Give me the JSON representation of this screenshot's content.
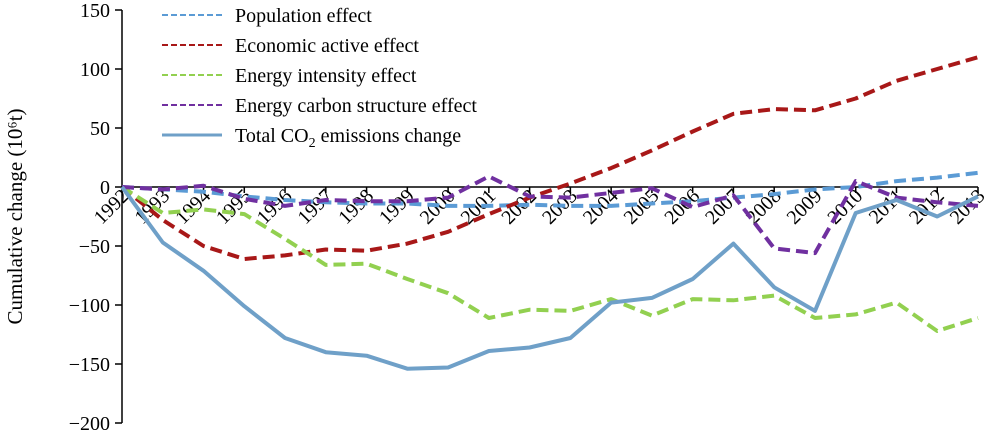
{
  "chart_data": {
    "type": "line",
    "title": "",
    "xlabel": "",
    "ylabel": "Cumulative change (10⁶t)",
    "ylim": [
      -200,
      150
    ],
    "yticks": [
      -200,
      -150,
      -100,
      -50,
      0,
      50,
      100,
      150
    ],
    "grid": false,
    "legend_position": "top-left",
    "categories": [
      "1992",
      "1993",
      "1994",
      "1995",
      "1996",
      "1997",
      "1998",
      "1999",
      "2000",
      "2001",
      "2002",
      "2003",
      "2004",
      "2005",
      "2006",
      "2007",
      "2008",
      "2009",
      "2010",
      "2011",
      "2012",
      "2013"
    ],
    "series": [
      {
        "name": "Population effect",
        "legend_label": "Population effect",
        "style": "dashed",
        "color": "#5b9bd5",
        "values": [
          0,
          -2,
          -4,
          -8,
          -11,
          -13,
          -14,
          -14,
          -16,
          -16,
          -15,
          -16,
          -16,
          -14,
          -12,
          -9,
          -6,
          -2,
          0,
          5,
          8,
          12
        ]
      },
      {
        "name": "Economic active effect",
        "legend_label": "Economic active effect",
        "style": "dashed",
        "color": "#a81818",
        "values": [
          0,
          -28,
          -50,
          -61,
          -58,
          -53,
          -54,
          -48,
          -38,
          -23,
          -9,
          3,
          16,
          31,
          47,
          62,
          66,
          65,
          75,
          90,
          100,
          110
        ]
      },
      {
        "name": "Energy intensity effect",
        "legend_label": "Energy intensity effect",
        "style": "dashed",
        "color": "#92d050",
        "values": [
          0,
          -22,
          -19,
          -23,
          -44,
          -66,
          -65,
          -78,
          -90,
          -111,
          -104,
          -105,
          -95,
          -109,
          -95,
          -96,
          -92,
          -111,
          -108,
          -98,
          -122,
          -111
        ]
      },
      {
        "name": "Energy carbon structure effect",
        "legend_label": "Energy carbon structure effect",
        "style": "dashed",
        "color": "#7030a0",
        "values": [
          0,
          -2,
          1,
          -10,
          -16,
          -11,
          -12,
          -12,
          -9,
          9,
          -8,
          -9,
          -5,
          -1,
          -17,
          -7,
          -52,
          -56,
          5,
          -9,
          -13,
          -16
        ]
      },
      {
        "name": "Total CO2 emissions change",
        "legend_label": "Total CO",
        "legend_sub": "2",
        "legend_tail": " emissions change",
        "style": "solid",
        "color": "#6fa0c8",
        "values": [
          0,
          -47,
          -71,
          -101,
          -128,
          -140,
          -143,
          -154,
          -153,
          -139,
          -136,
          -128,
          -98,
          -94,
          -78,
          -48,
          -85,
          -105,
          -22,
          -11,
          -25,
          -8
        ]
      }
    ]
  }
}
